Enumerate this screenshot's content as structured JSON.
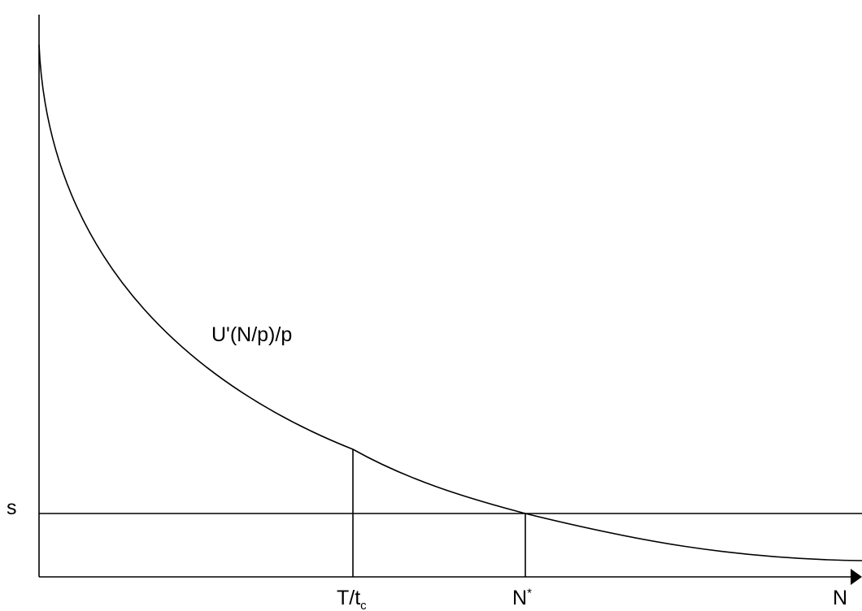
{
  "diagram": {
    "curve_label": "U'(N/p)/p",
    "y_level_label": "s",
    "x_axis_label": "N",
    "mark_1": {
      "base": "T/t",
      "sub": "c"
    },
    "mark_2": {
      "base": "N",
      "sup": "*"
    },
    "colors": {
      "line": "#000000",
      "background": "#ffffff"
    }
  }
}
